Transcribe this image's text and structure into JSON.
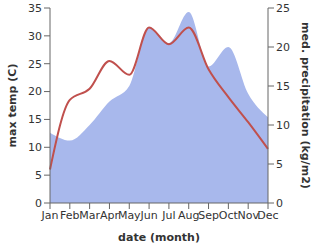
{
  "chart_data": {
    "type": "line",
    "categories": [
      "Jan",
      "Feb",
      "Mar",
      "Apr",
      "May",
      "Jun",
      "Jul",
      "Aug",
      "Sep",
      "Oct",
      "Nov",
      "Dec"
    ],
    "x_label": "date (month)",
    "y_label": "max temp (C)",
    "y2_label": "med. precipitation (kg/m2)",
    "ylim": [
      0,
      35
    ],
    "yticks": [
      0,
      5,
      10,
      15,
      20,
      25,
      30,
      35
    ],
    "y2lim": [
      0,
      25
    ],
    "y2ticks": [
      0,
      5,
      10,
      15,
      20,
      25
    ],
    "grid": false,
    "series": [
      {
        "type": "area",
        "axis": "y2",
        "color": "#a8b8ec",
        "values": [
          9,
          8,
          10,
          13,
          15,
          22.5,
          20.5,
          24.5,
          17.5,
          20,
          14,
          11
        ]
      },
      {
        "type": "line",
        "color": "#c0504d",
        "values": [
          6,
          18.5,
          20.5,
          25.5,
          23,
          31.5,
          28.5,
          31.5,
          24,
          19,
          14.5,
          9.7
        ]
      }
    ]
  }
}
